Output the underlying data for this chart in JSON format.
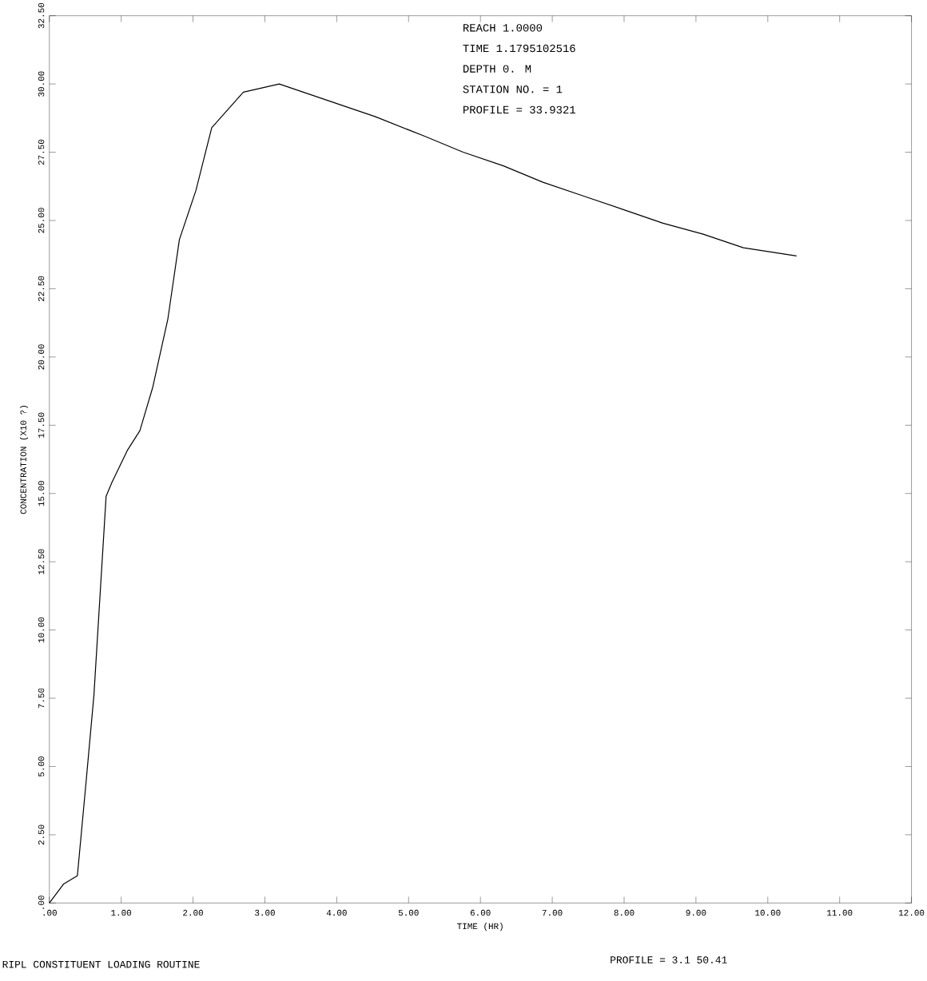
{
  "chart_data": {
    "type": "line",
    "xlabel": "TIME (HR)",
    "ylabel": "CONCENTRATION (X10 ?)",
    "x": [
      0,
      0.2,
      0.39,
      0.51,
      0.62,
      0.79,
      0.87,
      1.09,
      1.26,
      1.44,
      1.65,
      1.81,
      2.04,
      2.26,
      2.7,
      3.2,
      3.87,
      4.54,
      5.21,
      5.76,
      6.32,
      6.87,
      7.43,
      7.99,
      8.54,
      9.1,
      9.66,
      10.4
    ],
    "series": [
      {
        "color": "#000000",
        "values": [
          0,
          0.7,
          1.0,
          4.4,
          7.6,
          14.9,
          15.4,
          16.6,
          17.3,
          18.9,
          21.4,
          24.3,
          26.1,
          28.4,
          29.7,
          30.0,
          29.4,
          28.8,
          28.1,
          27.5,
          27.0,
          26.4,
          25.9,
          25.4,
          24.9,
          24.5,
          24.0,
          23.7
        ]
      }
    ],
    "xlim": [
      0,
      12
    ],
    "ylim": [
      0,
      32.5
    ],
    "xticks": [
      {
        "value": 0,
        "label": ".00"
      },
      {
        "value": 1,
        "label": "1.00"
      },
      {
        "value": 2,
        "label": "2.00"
      },
      {
        "value": 3,
        "label": "3.00"
      },
      {
        "value": 4,
        "label": "4.00"
      },
      {
        "value": 5,
        "label": "5.00"
      },
      {
        "value": 6,
        "label": "6.00"
      },
      {
        "value": 7,
        "label": "7.00"
      },
      {
        "value": 8,
        "label": "8.00"
      },
      {
        "value": 9,
        "label": "9.00"
      },
      {
        "value": 10,
        "label": "10.00"
      },
      {
        "value": 11,
        "label": "11.00"
      },
      {
        "value": 12,
        "label": "12.00"
      }
    ],
    "yticks": [
      {
        "value": 0,
        "label": ".00"
      },
      {
        "value": 2.5,
        "label": "2.50"
      },
      {
        "value": 5,
        "label": "5.00"
      },
      {
        "value": 7.5,
        "label": "7.50"
      },
      {
        "value": 10,
        "label": "10.00"
      },
      {
        "value": 12.5,
        "label": "12.50"
      },
      {
        "value": 15,
        "label": "15.00"
      },
      {
        "value": 17.5,
        "label": "17.50"
      },
      {
        "value": 20,
        "label": "20.00"
      },
      {
        "value": 22.5,
        "label": "22.50"
      },
      {
        "value": 25,
        "label": "25.00"
      },
      {
        "value": 27.5,
        "label": "27.50"
      },
      {
        "value": 30,
        "label": "30.00"
      },
      {
        "value": 32.5,
        "label": "32.50"
      }
    ],
    "grid": false,
    "marker": "none",
    "line_style": "solid",
    "annotations": [
      "REACH 1.0000",
      "TIME 1.1795102516",
      "DEPTH 0.          M",
      "STATION NO. =       1",
      "PROFILE =   33.9321",
      "RIPL CONSTITUENT LOADING ROUTINE",
      "PROFILE =    3.1 50.41"
    ]
  }
}
